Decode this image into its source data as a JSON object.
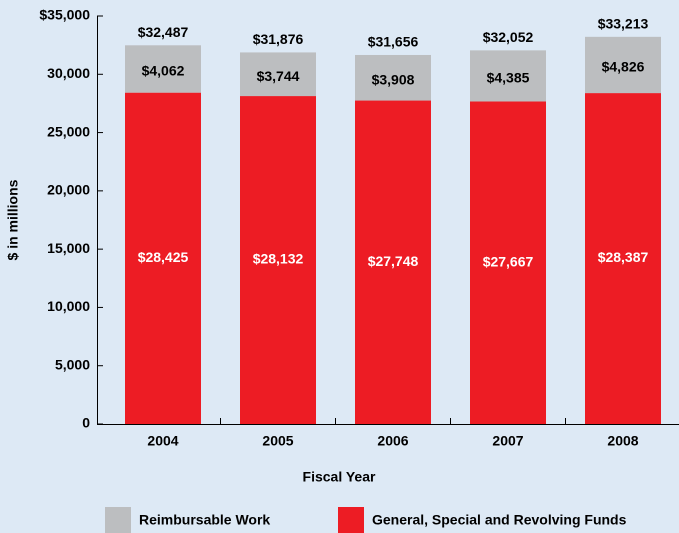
{
  "chart_data": {
    "type": "stacked_bar",
    "x_label": "Fiscal Year",
    "y_label": "$ in millions",
    "categories": [
      "2004",
      "2005",
      "2006",
      "2007",
      "2008"
    ],
    "series": [
      {
        "name": "General, Special and Revolving Funds",
        "color": "#ed1c24",
        "values": [
          28425,
          28132,
          27748,
          27667,
          28387
        ],
        "value_labels": [
          "$28,425",
          "$28,132",
          "$27,748",
          "$27,667",
          "$28,387"
        ]
      },
      {
        "name": "Reimbursable Work",
        "color": "#bcbec0",
        "values": [
          4062,
          3744,
          3908,
          4385,
          4826
        ],
        "value_labels": [
          "$4,062",
          "$3,744",
          "$3,908",
          "$4,385",
          "$4,826"
        ]
      }
    ],
    "totals": [
      32487,
      31876,
      31656,
      32052,
      33213
    ],
    "total_labels": [
      "$32,487",
      "$31,876",
      "$31,656",
      "$32,052",
      "$33,213"
    ],
    "ylim": [
      0,
      35000
    ],
    "yticks": [
      0,
      {
        "value": 5000,
        "label": "5,000"
      },
      {
        "value": 10000,
        "label": "10,000"
      },
      {
        "value": 15000,
        "label": "15,000"
      },
      {
        "value": 20000,
        "label": "20,000"
      },
      {
        "value": 25000,
        "label": "25,000"
      },
      {
        "value": 30000,
        "label": "30,000"
      },
      {
        "value": 35000,
        "label": "$35,000"
      }
    ],
    "legend_order": [
      1,
      0
    ]
  }
}
